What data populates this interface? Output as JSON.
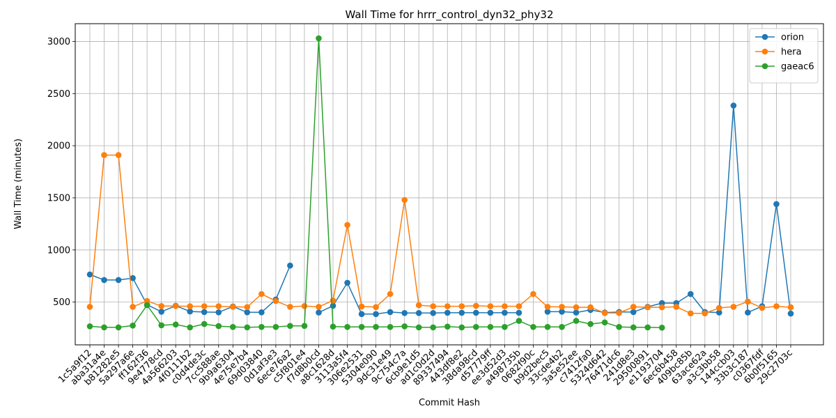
{
  "chart_data": {
    "type": "line",
    "title": "Wall Time for hrrr_control_dyn32_phy32",
    "xlabel": "Commit Hash",
    "ylabel": "Wall Time (minutes)",
    "ylim": [
      90,
      3170
    ],
    "yticks": [
      500,
      1000,
      1500,
      2000,
      2500,
      3000
    ],
    "grid": true,
    "legend_position": "top-right",
    "categories": [
      "1c5a9f12",
      "aba31a4e",
      "b81282e5",
      "5a297a6e",
      "ff162f36",
      "9e4778cd",
      "4a566203",
      "4f0111b2",
      "c0d4de3c",
      "7cc588ae",
      "9b9a6304",
      "4e75e7b4",
      "69d03840",
      "0d1af3e3",
      "6ece76a2",
      "c5f801e4",
      "f7d8b0cd",
      "a8c1628d",
      "3113a5f4",
      "306e2531",
      "5304e090",
      "9dc31e49",
      "9c754c7a",
      "6cb9e1d5",
      "ad1c0d2d",
      "89337494",
      "443df8e2",
      "38da98cd",
      "d57779ff",
      "ee3d52d3",
      "a498735b",
      "0682f90c",
      "b9d2bec5",
      "33cde4b2",
      "3a5e52ee",
      "c7412fa0",
      "5324d642",
      "76471dc6",
      "241d8e3",
      "29500891",
      "e1193704",
      "6ec6b458",
      "409bc85b",
      "63ace62a",
      "a3c3bb58",
      "144ccb03",
      "33b3c187",
      "c0367fdf",
      "6b0f5165",
      "29c2703c"
    ],
    "series": [
      {
        "name": "orion",
        "color": "#1f77b4",
        "values": [
          765,
          712,
          712,
          730,
          475,
          408,
          465,
          410,
          405,
          402,
          458,
          402,
          402,
          525,
          850,
          null,
          400,
          465,
          685,
          385,
          385,
          405,
          395,
          395,
          395,
          398,
          398,
          398,
          398,
          398,
          398,
          null,
          408,
          408,
          400,
          425,
          400,
          405,
          405,
          455,
          490,
          490,
          578,
          405,
          400,
          2385,
          400,
          460,
          1440,
          390
        ]
      },
      {
        "name": "hera",
        "color": "#ff7f0e",
        "values": [
          455,
          1910,
          1910,
          455,
          510,
          462,
          462,
          460,
          460,
          460,
          455,
          452,
          578,
          510,
          455,
          462,
          455,
          515,
          1240,
          458,
          452,
          578,
          1480,
          470,
          460,
          460,
          460,
          465,
          460,
          460,
          460,
          578,
          455,
          455,
          450,
          450,
          395,
          395,
          455,
          450,
          450,
          455,
          392,
          392,
          445,
          455,
          505,
          445,
          460,
          450
        ]
      },
      {
        "name": "gaeac6",
        "color": "#2ca02c",
        "values": [
          268,
          258,
          258,
          275,
          470,
          278,
          285,
          258,
          290,
          270,
          262,
          258,
          262,
          262,
          272,
          272,
          3030,
          265,
          262,
          262,
          262,
          262,
          268,
          258,
          258,
          265,
          258,
          262,
          262,
          262,
          320,
          262,
          262,
          262,
          320,
          290,
          305,
          262,
          258,
          258,
          255,
          null,
          null,
          null,
          null,
          null,
          null,
          null,
          null,
          null
        ]
      }
    ]
  }
}
